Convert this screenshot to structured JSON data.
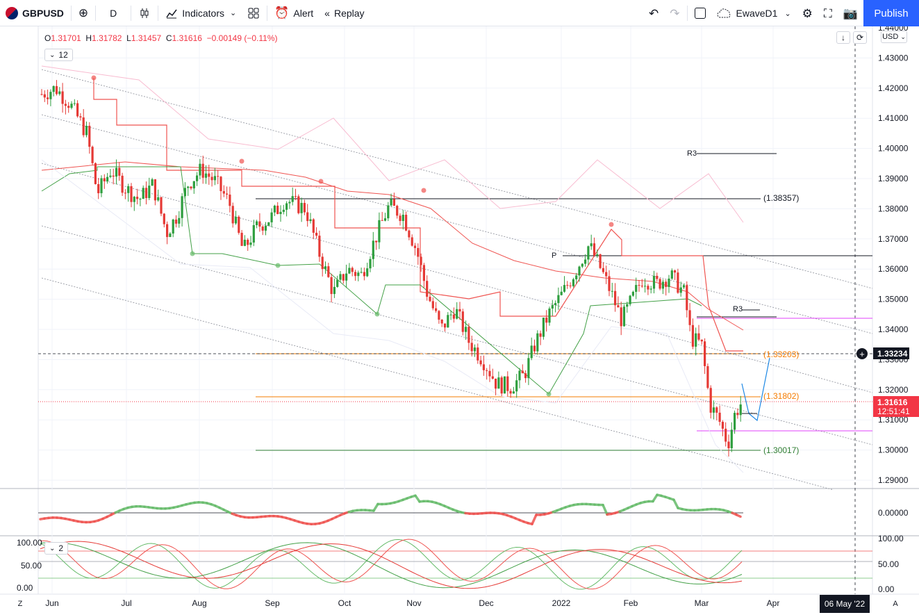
{
  "toolbar": {
    "symbol": "GBPUSD",
    "interval": "D",
    "indicators_label": "Indicators",
    "alert_label": "Alert",
    "replay_label": "Replay",
    "layout_name": "EwaveD1",
    "publish_label": "Publish"
  },
  "legend": {
    "o_key": "O",
    "o_val": "1.31701",
    "h_key": "H",
    "h_val": "1.31782",
    "l_key": "L",
    "l_val": "1.31457",
    "c_key": "C",
    "c_val": "1.31616",
    "change": "−0.00149 (−0.11%)",
    "indicator_count": "12",
    "stoch_count": "2"
  },
  "price_axis": {
    "currency": "USD",
    "ticks": [
      "1.44000",
      "1.43000",
      "1.42000",
      "1.41000",
      "1.40000",
      "1.39000",
      "1.38000",
      "1.37000",
      "1.36000",
      "1.35000",
      "1.34000",
      "1.33000",
      "1.32000",
      "1.31000",
      "1.30000",
      "1.29000"
    ],
    "crosshair_price": "1.33234",
    "last_price": "1.31616",
    "countdown": "12:51:41"
  },
  "levels": {
    "r3_upper": "R3",
    "r3_lower": "R3",
    "pivot": "P",
    "l1": "(1.38357)",
    "l2": "(1.33203)",
    "l3": "(1.31802)",
    "l4": "(1.30017)"
  },
  "osc_axis": {
    "ticks": [
      "0.00000"
    ]
  },
  "stoch_axis": {
    "left": [
      "100.00",
      "50.00",
      "0.00"
    ],
    "right": [
      "100.00",
      "50.00",
      "0.00"
    ]
  },
  "time_axis": {
    "labels": [
      "Jun",
      "Jul",
      "Aug",
      "Sep",
      "Oct",
      "Nov",
      "Dec",
      "2022",
      "Feb",
      "Mar",
      "Apr"
    ],
    "crosshair_date": "06 May '22",
    "left_btn": "Z",
    "right_btn": "A"
  },
  "colors": {
    "up": "#26a69a",
    "candle_up": "#2e9e3e",
    "candle_down": "#e53935",
    "accent": "#2962ff",
    "last_price": "#f23645"
  },
  "icons": {
    "add": "plus-circle-icon",
    "candles": "candles-icon",
    "indicators": "chart-line-icon",
    "templates": "grid-icon",
    "alert": "alarm-clock-icon",
    "replay": "rewind-icon",
    "undo": "undo-icon",
    "redo": "redo-icon",
    "layout": "square-icon",
    "cloud": "cloud-icon",
    "settings": "gear-icon",
    "fullscreen": "fullscreen-icon",
    "snapshot": "camera-icon"
  }
}
